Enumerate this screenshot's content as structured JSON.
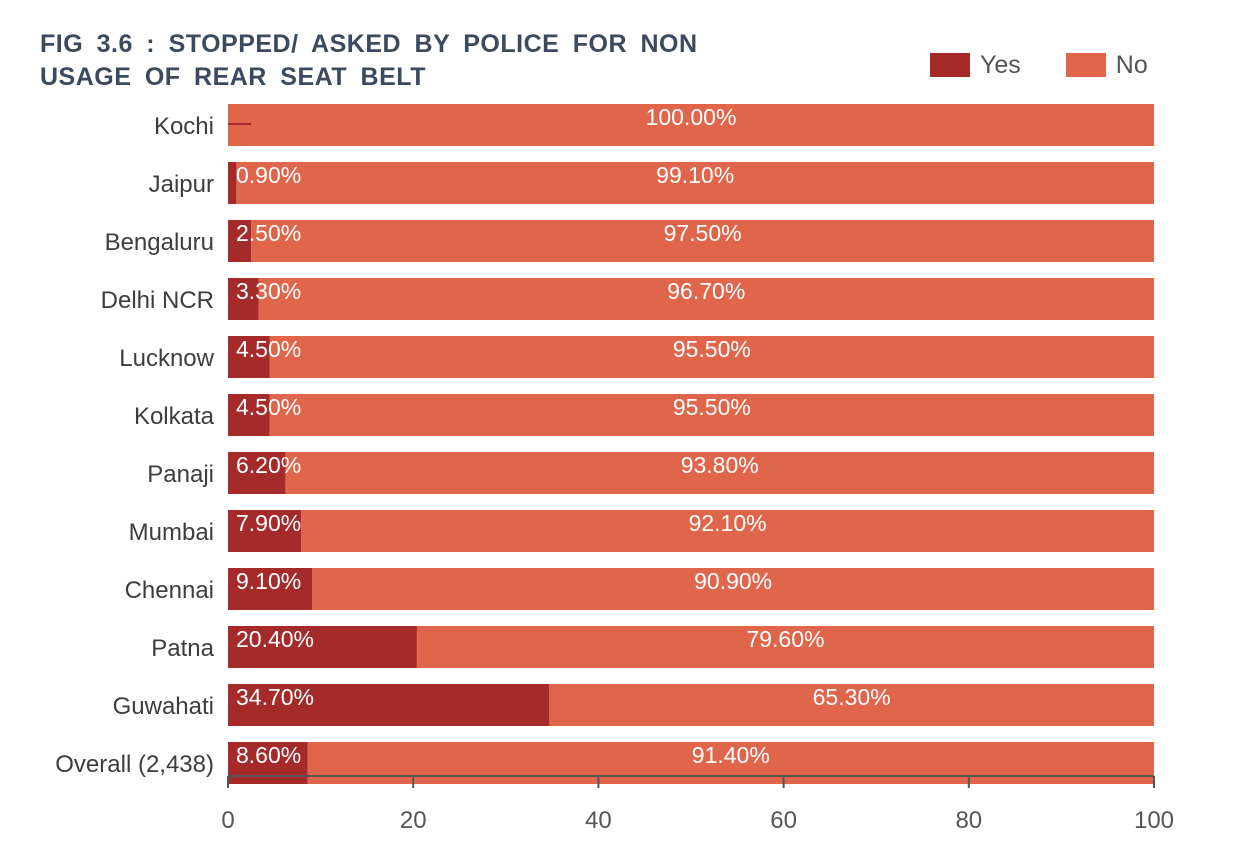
{
  "chart_data": {
    "type": "bar",
    "orientation": "horizontal",
    "stacked": true,
    "title_lines": [
      "FIG 3.6 : STOPPED/ ASKED BY POLICE FOR NON",
      "USAGE OF REAR SEAT BELT"
    ],
    "categories": [
      "Kochi",
      "Jaipur",
      "Bengaluru",
      "Delhi NCR",
      "Lucknow",
      "Kolkata",
      "Panaji",
      "Mumbai",
      "Chennai",
      "Patna",
      "Guwahati",
      "Overall (2,438)"
    ],
    "series": [
      {
        "name": "Yes",
        "color": "#a52a2a",
        "values": [
          0,
          0.9,
          2.5,
          3.3,
          4.5,
          4.5,
          6.2,
          7.9,
          9.1,
          20.4,
          34.7,
          8.6
        ],
        "labels": [
          "",
          "0.90%",
          "2.50%",
          "3.30%",
          "4.50%",
          "4.50%",
          "6.20%",
          "7.90%",
          "9.10%",
          "20.40%",
          "34.70%",
          "8.60%"
        ]
      },
      {
        "name": "No",
        "color": "#e0664b",
        "values": [
          100,
          99.1,
          97.5,
          96.7,
          95.5,
          95.5,
          93.8,
          92.1,
          90.9,
          79.6,
          65.3,
          91.4
        ],
        "labels": [
          "100.00%",
          "99.10%",
          "97.50%",
          "96.70%",
          "95.50%",
          "95.50%",
          "93.80%",
          "92.10%",
          "90.90%",
          "79.60%",
          "65.30%",
          "91.40%"
        ]
      }
    ],
    "xlim": [
      0,
      100
    ],
    "xticks": [
      0,
      20,
      40,
      60,
      80,
      100
    ],
    "xtick_labels": [
      "0",
      "20",
      "40",
      "60",
      "80",
      "100"
    ],
    "grid": false,
    "legend_position": "top-right"
  }
}
